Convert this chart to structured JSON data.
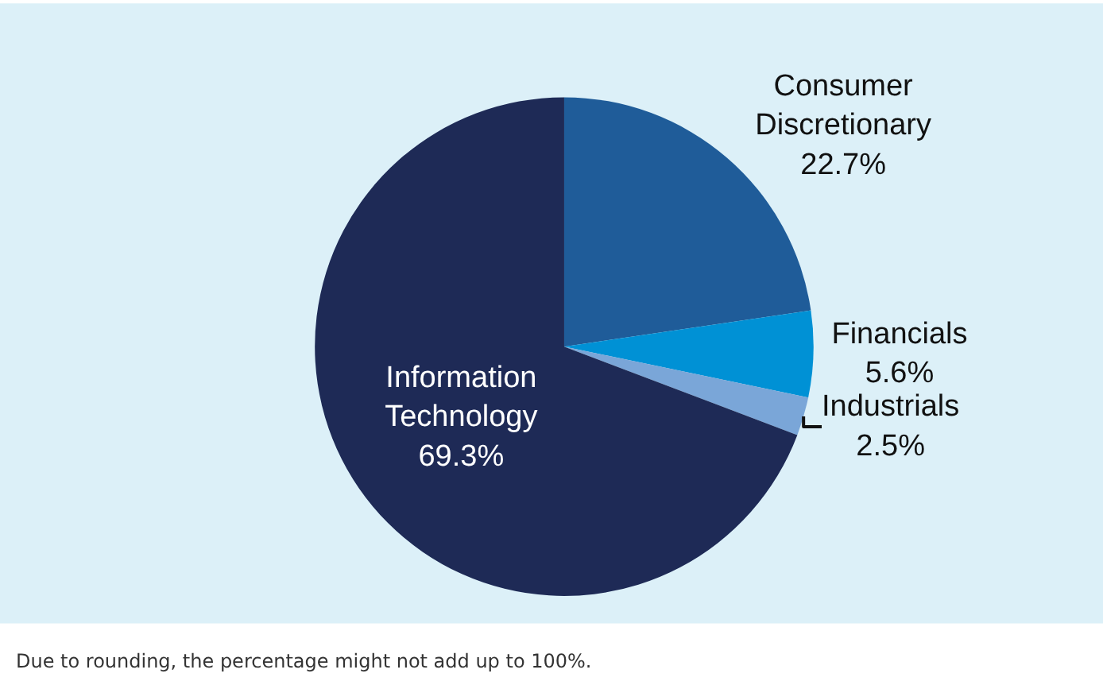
{
  "chart_data": {
    "type": "pie",
    "categories": [
      "Consumer Discretionary",
      "Financials",
      "Industrials",
      "Information Technology"
    ],
    "values": [
      22.7,
      5.6,
      2.5,
      69.3
    ],
    "value_labels": [
      "22.7%",
      "5.6%",
      "2.5%",
      "69.3%"
    ],
    "colors": [
      "#1f5c99",
      "#0091d5",
      "#7aa6d8",
      "#1e2a56"
    ],
    "annotations": [
      "Due to rounding, the percentage might not add up to 100%."
    ],
    "legend": false
  }
}
